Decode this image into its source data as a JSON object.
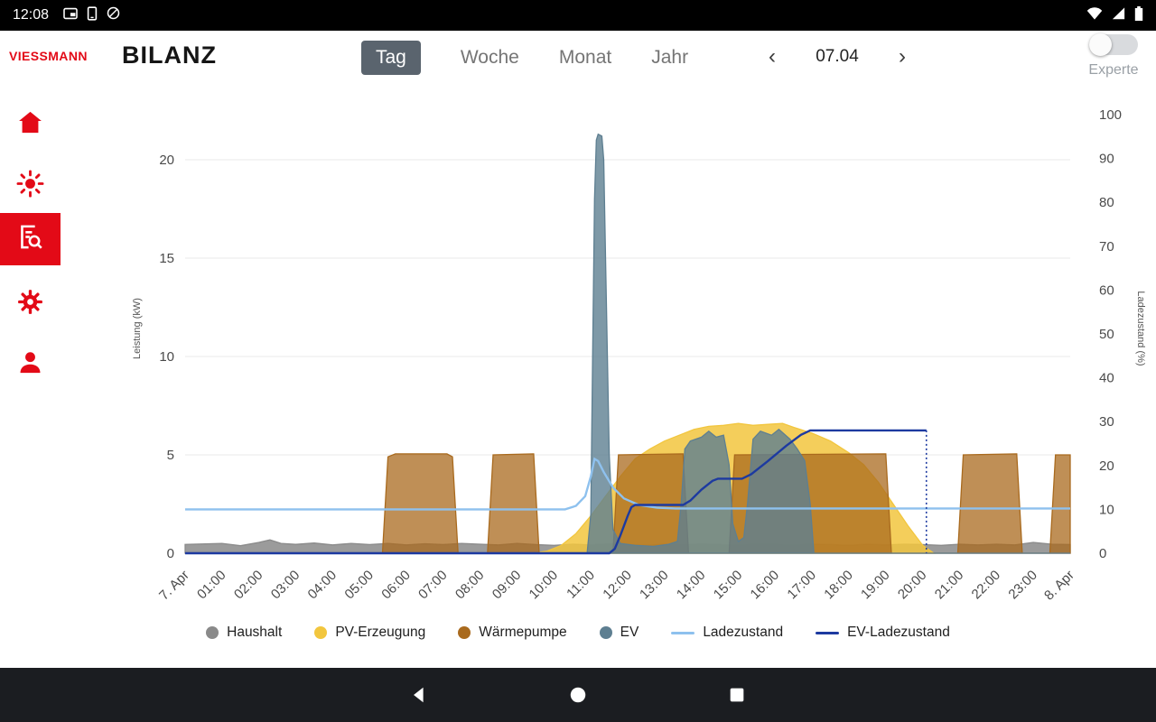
{
  "status_bar": {
    "time": "12:08"
  },
  "header": {
    "brand": "VIESSMANN",
    "title": "BILANZ",
    "tabs": [
      {
        "label": "Tag",
        "selected": true
      },
      {
        "label": "Woche",
        "selected": false
      },
      {
        "label": "Monat",
        "selected": false
      },
      {
        "label": "Jahr",
        "selected": false
      }
    ],
    "prev_icon": "‹",
    "next_icon": "›",
    "date": "07.04",
    "expert_label": "Experte",
    "expert_toggle_on": false,
    "accent_color": "#e30a17",
    "active_tab_color": "#5a646e"
  },
  "sidebar": {
    "items": [
      {
        "name": "home",
        "active": false
      },
      {
        "name": "energy",
        "active": false
      },
      {
        "name": "reports",
        "active": true
      },
      {
        "name": "settings",
        "active": false
      },
      {
        "name": "profile",
        "active": false
      }
    ]
  },
  "chart_data": {
    "type": "area",
    "title": "",
    "xlabel": "",
    "ylabel_left": "Leistung (kW)",
    "ylabel_right": "Ladezustand (%)",
    "xlim_hours": [
      0,
      24
    ],
    "x_ticks": [
      "7. Apr",
      "01:00",
      "02:00",
      "03:00",
      "04:00",
      "05:00",
      "06:00",
      "07:00",
      "08:00",
      "09:00",
      "10:00",
      "11:00",
      "12:00",
      "13:00",
      "14:00",
      "15:00",
      "16:00",
      "17:00",
      "18:00",
      "19:00",
      "20:00",
      "21:00",
      "22:00",
      "23:00",
      "8. Apr"
    ],
    "yticks_left": [
      0,
      5,
      10,
      15,
      20
    ],
    "yticks_right": [
      0,
      10,
      20,
      30,
      40,
      50,
      60,
      70,
      80,
      90,
      100
    ],
    "grid": true,
    "legend_position": "bottom",
    "series": [
      {
        "name": "Haushalt",
        "type": "area",
        "axis": "left",
        "color": "#8a8a8a",
        "fill_opacity": 0.85,
        "points": [
          [
            0,
            0.45
          ],
          [
            1,
            0.5
          ],
          [
            1.5,
            0.38
          ],
          [
            2,
            0.55
          ],
          [
            2.3,
            0.68
          ],
          [
            2.6,
            0.5
          ],
          [
            3,
            0.45
          ],
          [
            3.5,
            0.52
          ],
          [
            4,
            0.42
          ],
          [
            4.5,
            0.5
          ],
          [
            5,
            0.44
          ],
          [
            5.5,
            0.5
          ],
          [
            6,
            0.42
          ],
          [
            6.5,
            0.48
          ],
          [
            7,
            0.44
          ],
          [
            7.5,
            0.5
          ],
          [
            8,
            0.46
          ],
          [
            8.5,
            0.42
          ],
          [
            9,
            0.5
          ],
          [
            9.5,
            0.44
          ],
          [
            10,
            0.4
          ],
          [
            10.5,
            0.46
          ],
          [
            11,
            0.42
          ],
          [
            11.5,
            0.48
          ],
          [
            12,
            0.44
          ],
          [
            12.5,
            0.4
          ],
          [
            13,
            0.46
          ],
          [
            13.5,
            0.42
          ],
          [
            14,
            0.48
          ],
          [
            14.5,
            0.44
          ],
          [
            15,
            0.4
          ],
          [
            15.5,
            0.46
          ],
          [
            16,
            0.44
          ],
          [
            16.5,
            0.4
          ],
          [
            17,
            0.46
          ],
          [
            17.5,
            0.44
          ],
          [
            18,
            0.4
          ],
          [
            18.5,
            0.46
          ],
          [
            19,
            0.42
          ],
          [
            19.5,
            0.46
          ],
          [
            20,
            0.44
          ],
          [
            20.5,
            0.4
          ],
          [
            21,
            0.46
          ],
          [
            21.5,
            0.42
          ],
          [
            22,
            0.46
          ],
          [
            22.5,
            0.42
          ],
          [
            23,
            0.55
          ],
          [
            23.5,
            0.46
          ],
          [
            24,
            0.44
          ]
        ]
      },
      {
        "name": "PV-Erzeugung",
        "type": "area",
        "axis": "left",
        "color": "#f2c63e",
        "fill_opacity": 0.85,
        "points": [
          [
            9.4,
            0
          ],
          [
            9.8,
            0.1
          ],
          [
            10.2,
            0.4
          ],
          [
            10.6,
            1.0
          ],
          [
            11.0,
            1.9
          ],
          [
            11.4,
            2.9
          ],
          [
            11.8,
            3.9
          ],
          [
            12.2,
            4.8
          ],
          [
            12.6,
            5.3
          ],
          [
            13.0,
            5.7
          ],
          [
            13.4,
            6.0
          ],
          [
            13.8,
            6.3
          ],
          [
            14.2,
            6.45
          ],
          [
            14.6,
            6.5
          ],
          [
            15.0,
            6.6
          ],
          [
            15.4,
            6.5
          ],
          [
            15.8,
            6.55
          ],
          [
            16.2,
            6.6
          ],
          [
            16.5,
            6.4
          ],
          [
            17.0,
            6.1
          ],
          [
            17.5,
            5.7
          ],
          [
            18.0,
            5.1
          ],
          [
            18.4,
            4.5
          ],
          [
            18.8,
            3.6
          ],
          [
            19.2,
            2.5
          ],
          [
            19.6,
            1.4
          ],
          [
            20.0,
            0.4
          ],
          [
            20.3,
            0
          ]
        ]
      },
      {
        "name": "Wärmepumpe",
        "type": "area",
        "axis": "left",
        "color": "#a96a1e",
        "fill_opacity": 0.75,
        "points": [
          [
            0,
            0
          ],
          [
            5.35,
            0
          ],
          [
            5.5,
            4.9
          ],
          [
            5.7,
            5.05
          ],
          [
            7.1,
            5.05
          ],
          [
            7.25,
            4.9
          ],
          [
            7.4,
            0
          ],
          [
            8.2,
            0
          ],
          [
            8.35,
            5.0
          ],
          [
            9.45,
            5.05
          ],
          [
            9.6,
            0
          ],
          [
            11.6,
            0
          ],
          [
            11.75,
            5.0
          ],
          [
            13.5,
            5.05
          ],
          [
            13.65,
            0
          ],
          [
            14.75,
            0
          ],
          [
            14.9,
            5.0
          ],
          [
            19.0,
            5.05
          ],
          [
            19.15,
            0
          ],
          [
            20.95,
            0
          ],
          [
            21.1,
            5.0
          ],
          [
            22.55,
            5.05
          ],
          [
            22.7,
            0
          ],
          [
            23.45,
            0
          ],
          [
            23.6,
            5.0
          ],
          [
            24,
            5.0
          ]
        ]
      },
      {
        "name": "EV",
        "type": "area",
        "axis": "left",
        "color": "#5e7f91",
        "fill_opacity": 0.8,
        "points": [
          [
            0,
            0
          ],
          [
            10.9,
            0
          ],
          [
            11.0,
            2
          ],
          [
            11.05,
            10
          ],
          [
            11.1,
            18
          ],
          [
            11.15,
            21.0
          ],
          [
            11.2,
            21.3
          ],
          [
            11.3,
            21.2
          ],
          [
            11.35,
            20
          ],
          [
            11.4,
            15
          ],
          [
            11.5,
            5
          ],
          [
            11.6,
            1.2
          ],
          [
            11.8,
            0.5
          ],
          [
            12.2,
            0.4
          ],
          [
            12.7,
            0.35
          ],
          [
            13.1,
            0.45
          ],
          [
            13.35,
            0.6
          ],
          [
            13.45,
            2.5
          ],
          [
            13.55,
            5.3
          ],
          [
            13.7,
            5.7
          ],
          [
            14.0,
            5.9
          ],
          [
            14.2,
            6.2
          ],
          [
            14.4,
            5.9
          ],
          [
            14.6,
            6.0
          ],
          [
            14.75,
            4.5
          ],
          [
            14.85,
            1.5
          ],
          [
            15.0,
            0.6
          ],
          [
            15.15,
            0.8
          ],
          [
            15.25,
            2.5
          ],
          [
            15.4,
            5.8
          ],
          [
            15.6,
            6.2
          ],
          [
            15.9,
            6.0
          ],
          [
            16.1,
            6.3
          ],
          [
            16.4,
            5.8
          ],
          [
            16.6,
            5.3
          ],
          [
            16.8,
            4.7
          ],
          [
            16.95,
            2.5
          ],
          [
            17.05,
            0
          ],
          [
            24,
            0
          ]
        ]
      },
      {
        "name": "Ladezustand",
        "type": "line",
        "axis": "right",
        "color": "#8ec1ee",
        "points": [
          [
            0,
            10
          ],
          [
            10.3,
            10
          ],
          [
            10.6,
            10.8
          ],
          [
            10.85,
            13
          ],
          [
            11.0,
            17.5
          ],
          [
            11.1,
            21.5
          ],
          [
            11.2,
            21
          ],
          [
            11.35,
            18.5
          ],
          [
            11.6,
            15
          ],
          [
            11.9,
            12.5
          ],
          [
            12.3,
            11
          ],
          [
            12.8,
            10.4
          ],
          [
            13.3,
            10.2
          ],
          [
            24,
            10.2
          ]
        ]
      },
      {
        "name": "EV-Ladezustand",
        "type": "line",
        "axis": "right",
        "color": "#1d3aa0",
        "points": [
          [
            0,
            0
          ],
          [
            11.5,
            0
          ],
          [
            11.65,
            1
          ],
          [
            11.8,
            4
          ],
          [
            12.0,
            8.5
          ],
          [
            12.1,
            10.5
          ],
          [
            12.2,
            11
          ],
          [
            13.5,
            11
          ],
          [
            13.7,
            12
          ],
          [
            14.0,
            14.5
          ],
          [
            14.3,
            16.5
          ],
          [
            14.45,
            17
          ],
          [
            15.1,
            17
          ],
          [
            15.35,
            18
          ],
          [
            15.8,
            21
          ],
          [
            16.3,
            24.5
          ],
          [
            16.7,
            27
          ],
          [
            16.95,
            28
          ],
          [
            20.1,
            28
          ]
        ],
        "dash_segment": {
          "x": 20.1,
          "from": 28,
          "to": 0
        }
      }
    ],
    "legend": [
      {
        "label": "Haushalt",
        "marker": "dot",
        "color": "#8a8a8a"
      },
      {
        "label": "PV-Erzeugung",
        "marker": "dot",
        "color": "#f2c63e"
      },
      {
        "label": "Wärmepumpe",
        "marker": "dot",
        "color": "#a96a1e"
      },
      {
        "label": "EV",
        "marker": "dot",
        "color": "#5e7f91"
      },
      {
        "label": "Ladezustand",
        "marker": "line",
        "color": "#8ec1ee"
      },
      {
        "label": "EV-Ladezustand",
        "marker": "line",
        "color": "#1d3aa0"
      }
    ]
  }
}
